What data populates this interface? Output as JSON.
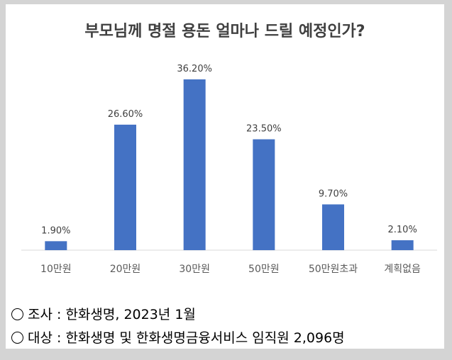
{
  "chart_data": {
    "type": "bar",
    "title": "부모님께 명절 용돈 얼마나 드릴 예정인가?",
    "categories": [
      "10만원",
      "20만원",
      "30만원",
      "50만원",
      "50만원초과",
      "계획없음"
    ],
    "values": [
      1.9,
      26.6,
      36.2,
      23.5,
      9.7,
      2.1
    ],
    "value_labels": [
      "1.90%",
      "26.60%",
      "36.20%",
      "23.50%",
      "9.70%",
      "2.10%"
    ],
    "xlabel": "",
    "ylabel": "",
    "ylim": [
      0,
      36.2
    ],
    "grid": false,
    "legend": "none",
    "bar_color": "#4472c4"
  },
  "notes": [
    "조사 : 한화생명, 2023년 1월",
    "대상 : 한화생명 및 한화생명금융서비스 임직원 2,096명"
  ]
}
